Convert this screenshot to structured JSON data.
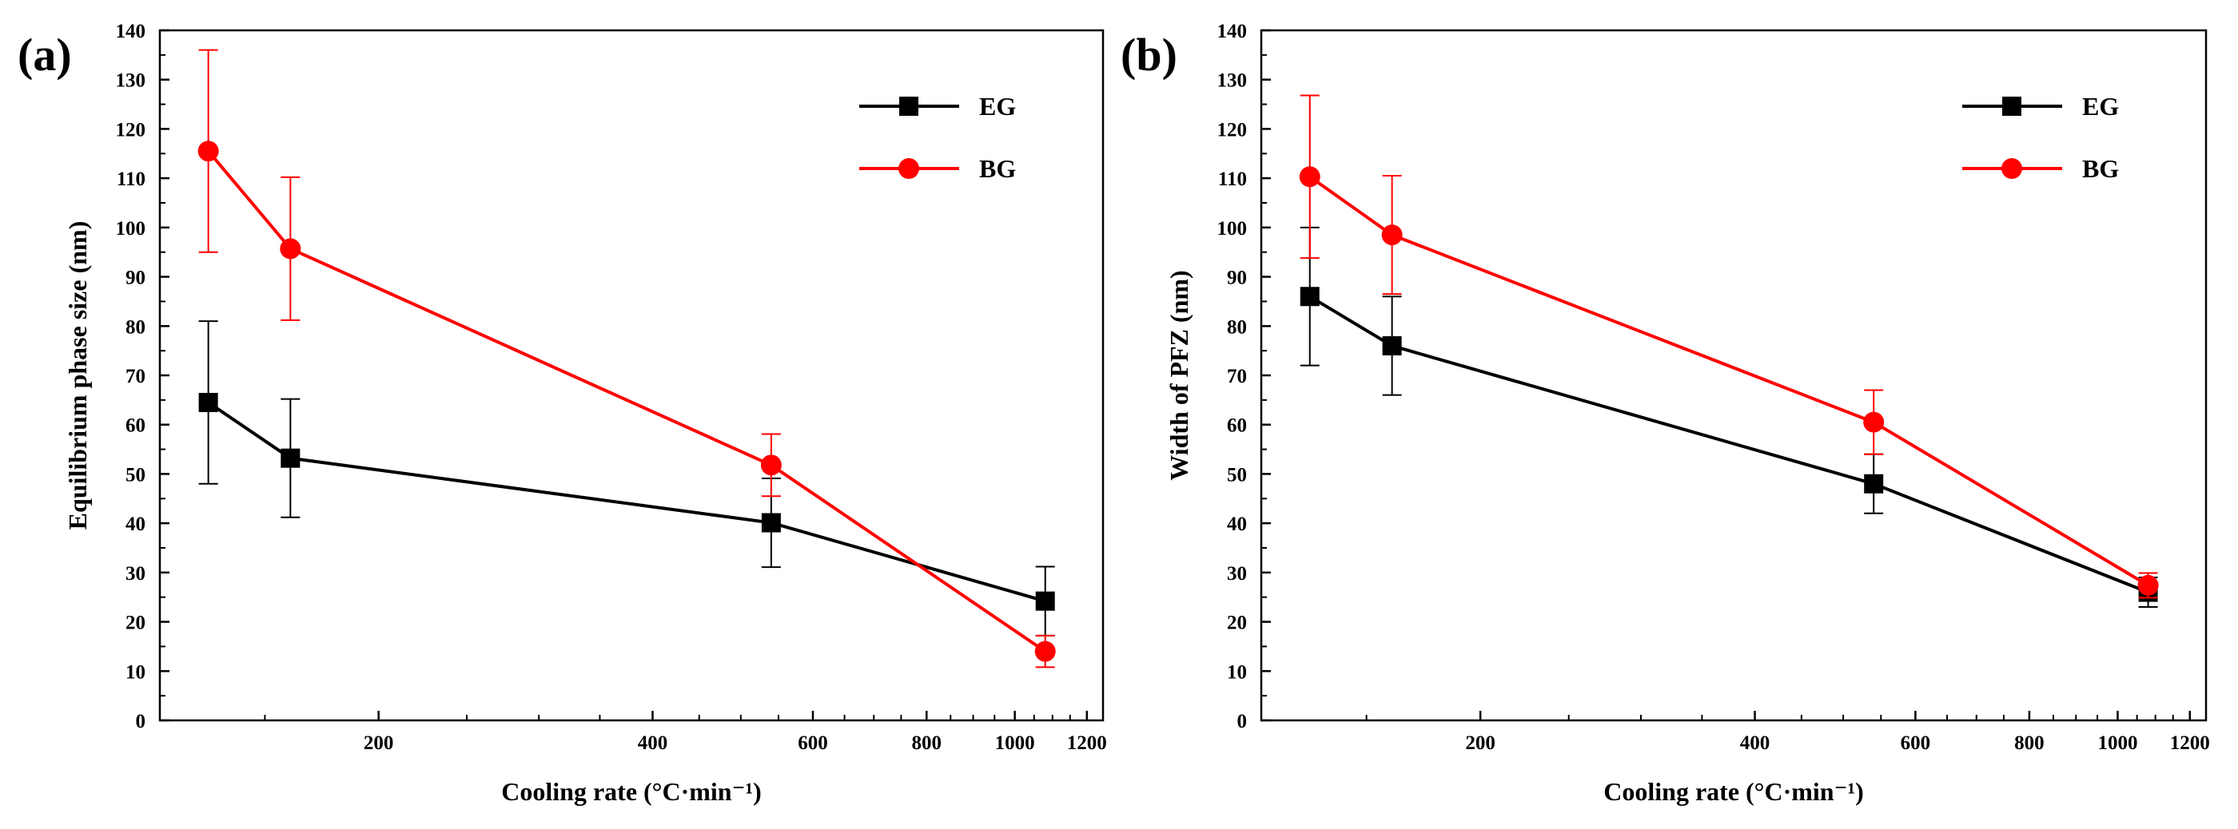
{
  "figure": {
    "panels": [
      "(a)",
      "(b)"
    ]
  },
  "chart_data": [
    {
      "type": "line",
      "panel": "(a)",
      "title": "",
      "xlabel": "Cooling rate (°C·min⁻¹)",
      "ylabel": "Equilibrium phase size (nm)",
      "xscale": "log",
      "xlim": [
        115,
        1250
      ],
      "ylim": [
        0,
        140
      ],
      "xticks": [
        "200",
        "400",
        "600",
        "800",
        "1000",
        "1200"
      ],
      "yticks": [
        "0",
        "10",
        "20",
        "30",
        "40",
        "50",
        "60",
        "70",
        "80",
        "90",
        "100",
        "110",
        "120",
        "130",
        "140"
      ],
      "legend_position": "top-right",
      "series": [
        {
          "name": "EG",
          "color": "#000000",
          "marker": "square",
          "x": [
            130,
            160,
            540,
            1080
          ],
          "y": [
            64.5,
            53.2,
            40.1,
            24.2
          ],
          "err": [
            16.5,
            12.0,
            9.0,
            7.0
          ]
        },
        {
          "name": "BG",
          "color": "#ff0000",
          "marker": "circle",
          "x": [
            130,
            160,
            540,
            1080
          ],
          "y": [
            115.5,
            95.7,
            51.8,
            14.0
          ],
          "err": [
            20.5,
            14.5,
            6.3,
            3.2
          ]
        }
      ]
    },
    {
      "type": "line",
      "panel": "(b)",
      "title": "",
      "xlabel": "Cooling rate (°C·min⁻¹)",
      "ylabel": "Width of PFZ (nm)",
      "xscale": "log",
      "xlim": [
        115,
        1250
      ],
      "ylim": [
        0,
        140
      ],
      "xticks": [
        "200",
        "400",
        "600",
        "800",
        "1000",
        "1200"
      ],
      "yticks": [
        "0",
        "10",
        "20",
        "30",
        "40",
        "50",
        "60",
        "70",
        "80",
        "90",
        "100",
        "110",
        "120",
        "130",
        "140"
      ],
      "legend_position": "top-right",
      "series": [
        {
          "name": "EG",
          "color": "#000000",
          "marker": "square",
          "x": [
            130,
            160,
            540,
            1080
          ],
          "y": [
            86.0,
            76.0,
            48.0,
            26.0
          ],
          "err": [
            14.0,
            10.0,
            6.0,
            3.0
          ]
        },
        {
          "name": "BG",
          "color": "#ff0000",
          "marker": "circle",
          "x": [
            130,
            160,
            540,
            1080
          ],
          "y": [
            110.3,
            98.5,
            60.5,
            27.4
          ],
          "err": [
            16.5,
            12.0,
            6.5,
            2.5
          ]
        }
      ]
    }
  ]
}
